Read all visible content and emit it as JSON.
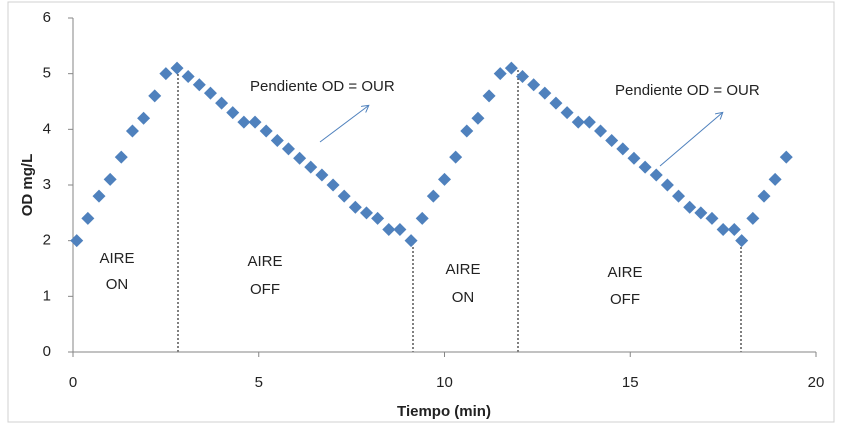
{
  "chart_data": {
    "type": "scatter",
    "x_label": "Tiempo (min)",
    "y_label": "OD mg/L",
    "xlim": [
      0,
      20
    ],
    "xticks": [
      0,
      5,
      10,
      15,
      20
    ],
    "ylim": [
      0,
      6
    ],
    "yticks": [
      0,
      1,
      2,
      3,
      4,
      5,
      6
    ],
    "grid": false,
    "series": [
      {
        "color": "#4f81bd",
        "x": [
          0.1,
          0.4,
          0.7,
          1.0,
          1.3,
          1.6,
          1.9,
          2.2,
          2.5,
          2.8,
          3.1,
          3.4,
          3.7,
          4.0,
          4.3,
          4.6,
          4.9,
          5.2,
          5.5,
          5.8,
          6.1,
          6.4,
          6.7,
          7.0,
          7.3,
          7.6,
          7.9,
          8.2,
          8.5,
          8.8,
          9.1,
          9.4,
          9.7,
          10.0,
          10.3,
          10.6,
          10.9,
          11.2,
          11.5,
          11.8,
          12.1,
          12.4,
          12.7,
          13.0,
          13.3,
          13.6,
          13.9,
          14.2,
          14.5,
          14.8,
          15.1,
          15.4,
          15.7,
          16.0,
          16.3,
          16.6,
          16.9,
          17.2,
          17.5,
          17.8,
          18.0,
          18.3,
          18.6,
          18.9,
          19.2
        ],
        "values": [
          2.0,
          2.4,
          2.8,
          3.1,
          3.5,
          3.97,
          4.2,
          4.6,
          5.0,
          5.1,
          4.95,
          4.8,
          4.65,
          4.47,
          4.3,
          4.13,
          4.13,
          3.97,
          3.8,
          3.65,
          3.48,
          3.32,
          3.18,
          3.0,
          2.8,
          2.6,
          2.5,
          2.4,
          2.2,
          2.2,
          2.0,
          2.4,
          2.8,
          3.1,
          3.5,
          3.97,
          4.2,
          4.6,
          5.0,
          5.1,
          4.95,
          4.8,
          4.65,
          4.47,
          4.3,
          4.13,
          4.13,
          3.97,
          3.8,
          3.65,
          3.48,
          3.32,
          3.18,
          3.0,
          2.8,
          2.6,
          2.5,
          2.4,
          2.2,
          2.2,
          2.0,
          2.4,
          2.8,
          3.1,
          3.5
        ]
      }
    ],
    "annotations": [
      {
        "lines": [
          "AIRE",
          "ON"
        ]
      },
      {
        "lines": [
          "AIRE",
          "OFF"
        ]
      },
      {
        "lines": [
          "AIRE",
          "ON"
        ]
      },
      {
        "lines": [
          "AIRE",
          "OFF"
        ]
      },
      {
        "text": "Pendiente OD = OUR"
      },
      {
        "text": "Pendiente OD = OUR"
      }
    ]
  }
}
